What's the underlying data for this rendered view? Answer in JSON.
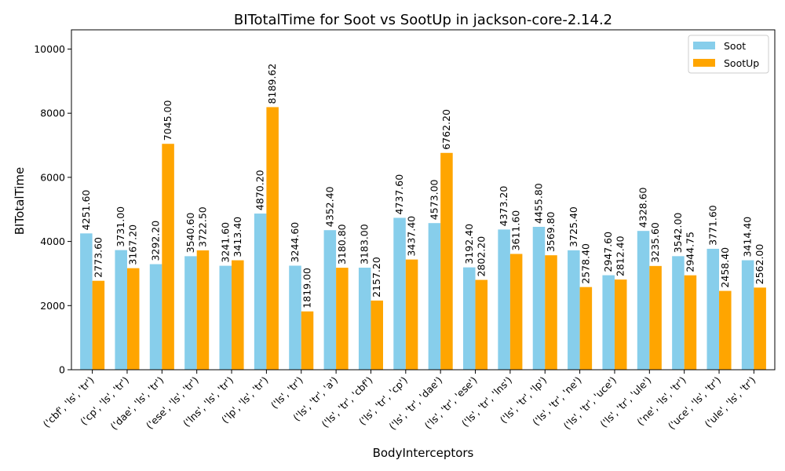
{
  "chart_data": {
    "type": "bar",
    "title": "BITotalTime for Soot vs SootUp in jackson-core-2.14.2",
    "xlabel": "BodyInterceptors",
    "ylabel": "BITotalTime",
    "ylim": [
      0,
      10600
    ],
    "yticks": [
      0,
      2000,
      4000,
      6000,
      8000,
      10000
    ],
    "legend_position": "top-right",
    "grid": false,
    "categories": [
      "('cbf', 'ls', 'tr')",
      "('cp', 'ls', 'tr')",
      "('dae', 'ls', 'tr')",
      "('ese', 'ls', 'tr')",
      "('lns', 'ls', 'tr')",
      "('lp', 'ls', 'tr')",
      "('ls', 'tr')",
      "('ls', 'tr', 'a')",
      "('ls', 'tr', 'cbf')",
      "('ls', 'tr', 'cp')",
      "('ls', 'tr', 'dae')",
      "('ls', 'tr', 'ese')",
      "('ls', 'tr', 'lns')",
      "('ls', 'tr', 'lp')",
      "('ls', 'tr', 'ne')",
      "('ls', 'tr', 'uce')",
      "('ls', 'tr', 'ule')",
      "('ne', 'ls', 'tr')",
      "('uce', 'ls', 'tr')",
      "('ule', 'ls', 'tr')"
    ],
    "series": [
      {
        "name": "Soot",
        "color": "#87ceeb",
        "values": [
          4251.6,
          3731.0,
          3292.2,
          3540.6,
          3241.6,
          4870.2,
          3244.6,
          4352.4,
          3183.0,
          4737.6,
          4573.0,
          3192.4,
          4373.2,
          4455.8,
          3725.4,
          2947.6,
          4328.6,
          3542.0,
          3771.6,
          3414.4
        ],
        "labels": [
          "4251.60",
          "3731.00",
          "3292.20",
          "3540.60",
          "3241.60",
          "4870.20",
          "3244.60",
          "4352.40",
          "3183.00",
          "4737.60",
          "4573.00",
          "3192.40",
          "4373.20",
          "4455.80",
          "3725.40",
          "2947.60",
          "4328.60",
          "3542.00",
          "3771.60",
          "3414.40"
        ]
      },
      {
        "name": "SootUp",
        "color": "#ffa500",
        "values": [
          2773.6,
          3167.2,
          7045.0,
          3722.5,
          3413.4,
          8189.62,
          1819.0,
          3180.8,
          2157.2,
          3437.4,
          6762.2,
          2802.2,
          3611.6,
          3569.8,
          2578.4,
          2812.4,
          3235.6,
          2944.75,
          2458.4,
          2562.0
        ],
        "labels": [
          "2773.60",
          "3167.20",
          "7045.00",
          "3722.50",
          "3413.40",
          "8189.62",
          "1819.00",
          "3180.80",
          "2157.20",
          "3437.40",
          "6762.20",
          "2802.20",
          "3611.60",
          "3569.80",
          "2578.40",
          "2812.40",
          "3235.60",
          "2944.75",
          "2458.40",
          "2562.00"
        ]
      }
    ]
  }
}
